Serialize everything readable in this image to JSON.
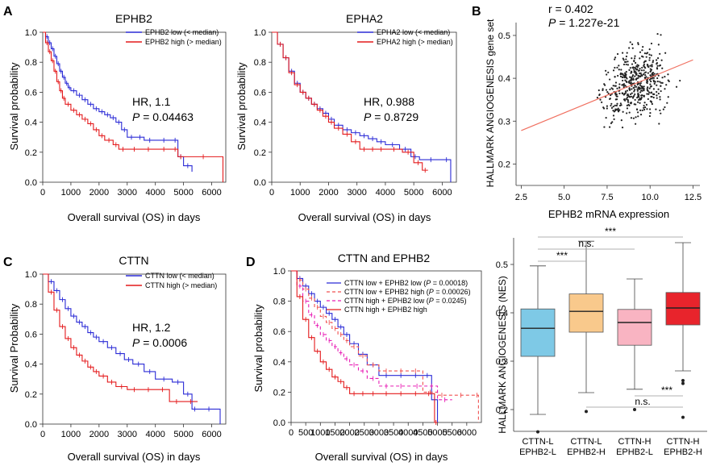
{
  "panel_labels": {
    "A": "A",
    "B": "B",
    "C": "C",
    "D": "D"
  },
  "colors": {
    "blue": "#2b2bd6",
    "red": "#e41a1c",
    "magenta": "#e81db5",
    "dashred": "#f05050",
    "line": "#f07060"
  },
  "chart_data": [
    {
      "id": "km_ephb2",
      "type": "line",
      "title": "EPHB2",
      "xlabel": "Overall survival (OS) in days",
      "ylabel": "Survival probability",
      "xlim": [
        0,
        6500
      ],
      "ylim": [
        0,
        1.0
      ],
      "xticks": [
        0,
        1000,
        2000,
        3000,
        4000,
        5000,
        6000
      ],
      "yticks": [
        0.0,
        0.2,
        0.4,
        0.6,
        0.8,
        1.0
      ],
      "hr_text": "HR, 1.1",
      "p_label": "P",
      "p_text": " = 0.04463",
      "series": [
        {
          "name": "EPHB2 low (< median)",
          "color": "#2b2bd6",
          "x": [
            0,
            100,
            200,
            300,
            400,
            500,
            600,
            700,
            800,
            900,
            1000,
            1200,
            1400,
            1600,
            1800,
            2000,
            2200,
            2400,
            2600,
            2800,
            3000,
            3300,
            3600,
            4000,
            4600,
            4800,
            5000,
            5300
          ],
          "y": [
            1.0,
            0.97,
            0.93,
            0.89,
            0.84,
            0.79,
            0.74,
            0.7,
            0.66,
            0.63,
            0.61,
            0.58,
            0.55,
            0.52,
            0.49,
            0.47,
            0.45,
            0.43,
            0.4,
            0.35,
            0.3,
            0.3,
            0.28,
            0.28,
            0.28,
            0.17,
            0.11,
            0.07
          ]
        },
        {
          "name": "EPHB2 high (> median)",
          "color": "#e41a1c",
          "x": [
            0,
            100,
            200,
            300,
            400,
            500,
            600,
            700,
            800,
            1000,
            1200,
            1400,
            1600,
            1800,
            2000,
            2200,
            2500,
            2700,
            3000,
            3500,
            4000,
            4600,
            4800,
            5000,
            6400
          ],
          "y": [
            1.0,
            0.93,
            0.87,
            0.81,
            0.74,
            0.67,
            0.61,
            0.56,
            0.52,
            0.48,
            0.45,
            0.42,
            0.39,
            0.35,
            0.31,
            0.28,
            0.25,
            0.22,
            0.22,
            0.22,
            0.22,
            0.22,
            0.17,
            0.17,
            0.0
          ]
        }
      ]
    },
    {
      "id": "km_epha2",
      "type": "line",
      "title": "EPHA2",
      "xlabel": "Overall survival (OS) in days",
      "ylabel": "Survival probability",
      "xlim": [
        0,
        6500
      ],
      "ylim": [
        0,
        1.0
      ],
      "xticks": [
        0,
        1000,
        2000,
        3000,
        4000,
        5000,
        6000
      ],
      "yticks": [
        0.0,
        0.2,
        0.4,
        0.6,
        0.8,
        1.0
      ],
      "hr_text": "HR, 0.988",
      "p_label": "P",
      "p_text": " = 0.8729",
      "series": [
        {
          "name": "EPHA2 low (< median)",
          "color": "#2b2bd6",
          "x": [
            0,
            200,
            400,
            600,
            800,
            1000,
            1200,
            1400,
            1600,
            1800,
            2000,
            2200,
            2500,
            2800,
            3100,
            3400,
            3700,
            4000,
            4500,
            4900,
            5200,
            6000,
            6300
          ],
          "y": [
            1.0,
            0.92,
            0.83,
            0.74,
            0.66,
            0.6,
            0.56,
            0.52,
            0.49,
            0.46,
            0.42,
            0.38,
            0.35,
            0.33,
            0.31,
            0.29,
            0.27,
            0.25,
            0.22,
            0.17,
            0.15,
            0.15,
            0.0
          ]
        },
        {
          "name": "EPHA2 high (> median)",
          "color": "#e41a1c",
          "x": [
            0,
            200,
            400,
            600,
            800,
            1000,
            1200,
            1400,
            1600,
            1800,
            2000,
            2200,
            2500,
            2800,
            3100,
            3400,
            3700,
            4000,
            4600,
            5000,
            5300,
            5500
          ],
          "y": [
            1.0,
            0.92,
            0.83,
            0.73,
            0.65,
            0.6,
            0.56,
            0.52,
            0.48,
            0.44,
            0.4,
            0.36,
            0.32,
            0.27,
            0.22,
            0.22,
            0.22,
            0.22,
            0.2,
            0.13,
            0.08,
            0.08
          ]
        }
      ]
    },
    {
      "id": "scatter_b",
      "type": "scatter",
      "r_text": "r = 0.402",
      "p_label": "P",
      "p_text": " = 1.227e-21",
      "xlabel": "EPHB2 mRNA expression",
      "ylabel": "HALLMARK ANGIOGENESIS gene set",
      "xlim": [
        2.2,
        12.9
      ],
      "ylim": [
        0.15,
        0.53
      ],
      "xticks": [
        2.5,
        5.0,
        7.5,
        10.0,
        12.5
      ],
      "xtick_labels": [
        "2.5",
        "5.0",
        "7.5",
        "10.0",
        "12.5"
      ],
      "yticks": [
        0.2,
        0.3,
        0.4,
        0.5
      ],
      "fit_line": {
        "x": [
          2.5,
          12.5
        ],
        "y": [
          0.278,
          0.443
        ]
      },
      "point_count": 500
    },
    {
      "id": "km_cttn",
      "type": "line",
      "title": "CTTN",
      "xlabel": "Overall survival (OS) in days",
      "ylabel": "Survival Probability",
      "xlim": [
        0,
        6500
      ],
      "ylim": [
        0,
        1.0
      ],
      "xticks": [
        0,
        1000,
        2000,
        3000,
        4000,
        5000,
        6000
      ],
      "yticks": [
        0.0,
        0.2,
        0.4,
        0.6,
        0.8,
        1.0
      ],
      "hr_text": "HR, 1.2",
      "p_label": "P",
      "p_text": " = 0.0006",
      "series": [
        {
          "name": "CTTN low (< median)",
          "color": "#2b2bd6",
          "x": [
            0,
            200,
            400,
            600,
            800,
            1000,
            1200,
            1400,
            1600,
            1800,
            2000,
            2300,
            2600,
            2900,
            3200,
            3600,
            4000,
            4600,
            5000,
            5300,
            5500,
            6300
          ],
          "y": [
            1.0,
            0.95,
            0.89,
            0.83,
            0.77,
            0.72,
            0.68,
            0.65,
            0.61,
            0.58,
            0.55,
            0.51,
            0.47,
            0.43,
            0.4,
            0.35,
            0.3,
            0.28,
            0.2,
            0.1,
            0.1,
            0.0
          ]
        },
        {
          "name": "CTTN high (> median)",
          "color": "#e41a1c",
          "x": [
            0,
            200,
            400,
            600,
            800,
            1000,
            1200,
            1400,
            1600,
            1800,
            2000,
            2300,
            2600,
            3000,
            3500,
            4000,
            4500,
            5000,
            5500
          ],
          "y": [
            1.0,
            0.88,
            0.76,
            0.65,
            0.57,
            0.51,
            0.46,
            0.42,
            0.38,
            0.35,
            0.32,
            0.28,
            0.25,
            0.23,
            0.23,
            0.23,
            0.15,
            0.15,
            0.15
          ]
        }
      ]
    },
    {
      "id": "km_cttn_ephb2",
      "type": "line",
      "title": "CTTN and EPHB2",
      "xlabel": "Overall survival (OS) in days",
      "ylabel": "Survival probability",
      "xlim": [
        0,
        6500
      ],
      "ylim": [
        0,
        1.0
      ],
      "xticks": [
        0,
        500,
        1000,
        1500,
        2000,
        2500,
        3000,
        3500,
        4000,
        4500,
        5000,
        5500,
        6000
      ],
      "yticks": [
        0.0,
        0.2,
        0.4,
        0.6,
        0.8,
        1.0
      ],
      "series": [
        {
          "name": "CTTN low + EPHB2 low",
          "p_label": "P",
          "p_value": "0.00018",
          "color": "#2b2bd6",
          "dash": "none",
          "x": [
            0,
            200,
            400,
            600,
            800,
            1000,
            1200,
            1400,
            1600,
            1800,
            2000,
            2300,
            2600,
            3000,
            3500,
            4000,
            4500,
            4800,
            5000
          ],
          "y": [
            1.0,
            0.95,
            0.9,
            0.85,
            0.8,
            0.76,
            0.72,
            0.68,
            0.63,
            0.58,
            0.52,
            0.45,
            0.38,
            0.31,
            0.31,
            0.31,
            0.31,
            0.15,
            0.0
          ]
        },
        {
          "name": "CTTN low + EPHB2 high",
          "p_label": "P",
          "p_value": "0.00026",
          "color": "#f05050",
          "dash": "4,3",
          "x": [
            0,
            200,
            400,
            600,
            800,
            1000,
            1200,
            1400,
            1600,
            1800,
            2000,
            2300,
            2600,
            3000,
            3500,
            4000,
            4500,
            5000,
            5300,
            6300,
            6400
          ],
          "y": [
            1.0,
            0.94,
            0.88,
            0.82,
            0.76,
            0.7,
            0.66,
            0.62,
            0.58,
            0.54,
            0.5,
            0.44,
            0.38,
            0.34,
            0.34,
            0.34,
            0.2,
            0.18,
            0.18,
            0.18,
            0.0
          ]
        },
        {
          "name": "CTTN high + EPHB2 low",
          "p_label": "P",
          "p_value": "0.0245",
          "color": "#e81db5",
          "dash": "4,3",
          "x": [
            0,
            200,
            400,
            600,
            800,
            1000,
            1200,
            1400,
            1600,
            1800,
            2000,
            2300,
            2600,
            3000,
            3500,
            4000,
            4600,
            5000,
            5500
          ],
          "y": [
            1.0,
            0.9,
            0.8,
            0.71,
            0.64,
            0.58,
            0.54,
            0.5,
            0.46,
            0.42,
            0.38,
            0.34,
            0.29,
            0.24,
            0.24,
            0.24,
            0.24,
            0.15,
            0.15
          ]
        },
        {
          "name": "CTTN high + EPHB2 high",
          "p_label": "",
          "p_value": "",
          "color": "#e41a1c",
          "dash": "none",
          "x": [
            0,
            200,
            400,
            600,
            800,
            1000,
            1200,
            1400,
            1600,
            1800,
            2000,
            2300,
            2600,
            3000,
            3500,
            4000,
            4500,
            4900,
            5000
          ],
          "y": [
            1.0,
            0.83,
            0.68,
            0.56,
            0.47,
            0.4,
            0.35,
            0.3,
            0.27,
            0.23,
            0.19,
            0.19,
            0.19,
            0.19,
            0.19,
            0.19,
            0.19,
            0.0,
            0.0
          ]
        }
      ]
    },
    {
      "id": "box_d",
      "type": "box",
      "ylabel": "HALLMARK ANGIOGENESIS (NES)",
      "ylim": [
        0.155,
        0.555
      ],
      "yticks": [
        0.2,
        0.3,
        0.4,
        0.5
      ],
      "categories": [
        {
          "line1": "CTTN-L",
          "line2": "EPHB2-L",
          "color": "#7ec9e6",
          "q1": 0.31,
          "median": 0.368,
          "q3": 0.408,
          "wlo": 0.19,
          "whi": 0.497,
          "outliers": [
            0.154
          ]
        },
        {
          "line1": "CTTN-L",
          "line2": "EPHB2-H",
          "color": "#f9c98c",
          "q1": 0.36,
          "median": 0.403,
          "q3": 0.439,
          "wlo": 0.235,
          "whi": 0.548,
          "outliers": [
            0.196
          ]
        },
        {
          "line1": "CTTN-H",
          "line2": "EPHB2-L",
          "color": "#f9b4c2",
          "q1": 0.333,
          "median": 0.38,
          "q3": 0.407,
          "wlo": 0.242,
          "whi": 0.47,
          "outliers": [
            0.2
          ]
        },
        {
          "line1": "CTTN-H",
          "line2": "EPHB2-H",
          "color": "#e8242c",
          "q1": 0.375,
          "median": 0.41,
          "q3": 0.442,
          "wlo": 0.28,
          "whi": 0.545,
          "outliers": [
            0.26,
            0.254,
            0.184
          ]
        }
      ],
      "comparisons": [
        {
          "from": 0,
          "to": 1,
          "label": "***",
          "pos": "top"
        },
        {
          "from": 0,
          "to": 2,
          "label": "n.s.",
          "pos": "top"
        },
        {
          "from": 0,
          "to": 3,
          "label": "***",
          "pos": "top"
        },
        {
          "from": 1,
          "to": 3,
          "label": "n.s.",
          "pos": "bottom"
        },
        {
          "from": 2,
          "to": 3,
          "label": "***",
          "pos": "bottom"
        }
      ]
    }
  ]
}
